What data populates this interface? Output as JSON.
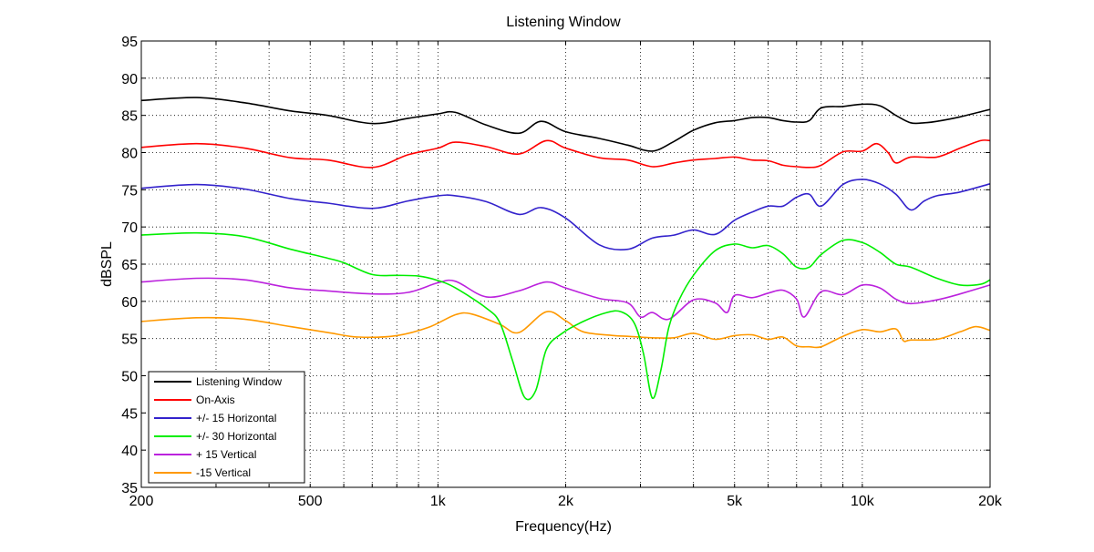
{
  "chart_data": {
    "type": "line",
    "title": "Listening Window",
    "xlabel": "Frequency(Hz)",
    "ylabel": "dBSPL",
    "xscale": "log",
    "xlim": [
      200,
      20000
    ],
    "ylim": [
      35,
      95
    ],
    "grid": true,
    "legend_position": "bottom-left",
    "xticks": [
      {
        "value": 200,
        "label": "200"
      },
      {
        "value": 500,
        "label": "500"
      },
      {
        "value": 1000,
        "label": "1k"
      },
      {
        "value": 2000,
        "label": "2k"
      },
      {
        "value": 5000,
        "label": "5k"
      },
      {
        "value": 10000,
        "label": "10k"
      },
      {
        "value": 20000,
        "label": "20k"
      }
    ],
    "yticks": [
      35,
      40,
      45,
      50,
      55,
      60,
      65,
      70,
      75,
      80,
      85,
      90,
      95
    ],
    "series": [
      {
        "name": "Listening Window",
        "color": "#000000",
        "points": [
          [
            200,
            87
          ],
          [
            270,
            87.4
          ],
          [
            350,
            86.7
          ],
          [
            450,
            85.6
          ],
          [
            550,
            85
          ],
          [
            700,
            83.9
          ],
          [
            850,
            84.6
          ],
          [
            1000,
            85.2
          ],
          [
            1100,
            85.4
          ],
          [
            1300,
            83.7
          ],
          [
            1550,
            82.6
          ],
          [
            1750,
            84.2
          ],
          [
            2000,
            82.8
          ],
          [
            2400,
            81.9
          ],
          [
            2800,
            81
          ],
          [
            3200,
            80.2
          ],
          [
            3600,
            81.5
          ],
          [
            4000,
            83
          ],
          [
            4500,
            84
          ],
          [
            5000,
            84.3
          ],
          [
            5500,
            84.7
          ],
          [
            6000,
            84.7
          ],
          [
            6500,
            84.3
          ],
          [
            7000,
            84.1
          ],
          [
            7500,
            84.3
          ],
          [
            8000,
            86
          ],
          [
            9000,
            86.2
          ],
          [
            10000,
            86.5
          ],
          [
            11000,
            86.3
          ],
          [
            12000,
            85
          ],
          [
            13000,
            84
          ],
          [
            14000,
            84
          ],
          [
            15000,
            84.2
          ],
          [
            17000,
            84.8
          ],
          [
            20000,
            85.8
          ]
        ]
      },
      {
        "name": "On-Axis",
        "color": "#ff0000",
        "points": [
          [
            200,
            80.7
          ],
          [
            270,
            81.2
          ],
          [
            350,
            80.6
          ],
          [
            450,
            79.3
          ],
          [
            550,
            79
          ],
          [
            700,
            78
          ],
          [
            850,
            79.7
          ],
          [
            1000,
            80.6
          ],
          [
            1100,
            81.4
          ],
          [
            1300,
            80.8
          ],
          [
            1550,
            79.8
          ],
          [
            1800,
            81.6
          ],
          [
            2000,
            80.6
          ],
          [
            2400,
            79.3
          ],
          [
            2800,
            79
          ],
          [
            3200,
            78.1
          ],
          [
            3600,
            78.6
          ],
          [
            4000,
            79
          ],
          [
            4500,
            79.2
          ],
          [
            5000,
            79.4
          ],
          [
            5500,
            79
          ],
          [
            6000,
            78.9
          ],
          [
            6500,
            78.3
          ],
          [
            7000,
            78.1
          ],
          [
            7500,
            78
          ],
          [
            8000,
            78.3
          ],
          [
            9000,
            80.1
          ],
          [
            10000,
            80.2
          ],
          [
            10800,
            81.2
          ],
          [
            11500,
            80
          ],
          [
            12000,
            78.6
          ],
          [
            13000,
            79.4
          ],
          [
            15000,
            79.4
          ],
          [
            17000,
            80.6
          ],
          [
            19000,
            81.6
          ],
          [
            20000,
            81.6
          ]
        ]
      },
      {
        "name": "+/- 15 Horizontal",
        "color": "#3322cc",
        "points": [
          [
            200,
            75.2
          ],
          [
            270,
            75.7
          ],
          [
            350,
            75.1
          ],
          [
            450,
            73.8
          ],
          [
            550,
            73.2
          ],
          [
            700,
            72.5
          ],
          [
            850,
            73.5
          ],
          [
            1000,
            74.2
          ],
          [
            1100,
            74.2
          ],
          [
            1300,
            73.4
          ],
          [
            1550,
            71.7
          ],
          [
            1750,
            72.6
          ],
          [
            2000,
            71.2
          ],
          [
            2400,
            67.6
          ],
          [
            2800,
            67
          ],
          [
            3200,
            68.5
          ],
          [
            3600,
            68.9
          ],
          [
            4000,
            69.6
          ],
          [
            4500,
            69
          ],
          [
            5000,
            70.9
          ],
          [
            5500,
            72
          ],
          [
            6000,
            72.8
          ],
          [
            6500,
            72.8
          ],
          [
            7000,
            74
          ],
          [
            7500,
            74.4
          ],
          [
            8000,
            72.8
          ],
          [
            9000,
            75.7
          ],
          [
            10000,
            76.4
          ],
          [
            11000,
            75.8
          ],
          [
            12000,
            74.4
          ],
          [
            13000,
            72.3
          ],
          [
            14000,
            73.5
          ],
          [
            15000,
            74.2
          ],
          [
            17000,
            74.7
          ],
          [
            20000,
            75.8
          ]
        ]
      },
      {
        "name": "+/- 30 Horizontal",
        "color": "#00ee00",
        "points": [
          [
            200,
            68.9
          ],
          [
            270,
            69.2
          ],
          [
            350,
            68.7
          ],
          [
            450,
            67
          ],
          [
            550,
            65.8
          ],
          [
            600,
            65.2
          ],
          [
            700,
            63.6
          ],
          [
            800,
            63.5
          ],
          [
            900,
            63.4
          ],
          [
            1000,
            62.8
          ],
          [
            1100,
            61.8
          ],
          [
            1300,
            59.1
          ],
          [
            1400,
            57.1
          ],
          [
            1500,
            52
          ],
          [
            1600,
            47.1
          ],
          [
            1700,
            48
          ],
          [
            1800,
            53.5
          ],
          [
            1950,
            55.6
          ],
          [
            2200,
            57.3
          ],
          [
            2500,
            58.5
          ],
          [
            2700,
            58.6
          ],
          [
            2900,
            57.1
          ],
          [
            3050,
            53
          ],
          [
            3200,
            47
          ],
          [
            3350,
            50.7
          ],
          [
            3500,
            56.5
          ],
          [
            3700,
            60.2
          ],
          [
            4000,
            63.5
          ],
          [
            4500,
            66.8
          ],
          [
            5000,
            67.7
          ],
          [
            5500,
            67.2
          ],
          [
            6000,
            67.5
          ],
          [
            6500,
            66.4
          ],
          [
            7000,
            64.6
          ],
          [
            7500,
            64.6
          ],
          [
            8000,
            66.3
          ],
          [
            9000,
            68.2
          ],
          [
            10000,
            67.9
          ],
          [
            11000,
            66.6
          ],
          [
            12000,
            65
          ],
          [
            13000,
            64.6
          ],
          [
            15000,
            63.1
          ],
          [
            17000,
            62.2
          ],
          [
            19000,
            62.3
          ],
          [
            20000,
            62.9
          ]
        ]
      },
      {
        "name": "+ 15 Vertical",
        "color": "#bb22dd",
        "points": [
          [
            200,
            62.6
          ],
          [
            270,
            63.1
          ],
          [
            350,
            62.9
          ],
          [
            450,
            61.8
          ],
          [
            550,
            61.4
          ],
          [
            700,
            61
          ],
          [
            850,
            61.2
          ],
          [
            1000,
            62.5
          ],
          [
            1100,
            62.7
          ],
          [
            1300,
            60.6
          ],
          [
            1550,
            61.4
          ],
          [
            1800,
            62.6
          ],
          [
            2000,
            61.8
          ],
          [
            2400,
            60.4
          ],
          [
            2800,
            59.8
          ],
          [
            3000,
            57.9
          ],
          [
            3200,
            58.5
          ],
          [
            3500,
            57.6
          ],
          [
            4000,
            60.2
          ],
          [
            4500,
            59.8
          ],
          [
            4800,
            58.5
          ],
          [
            5000,
            60.8
          ],
          [
            5500,
            60.5
          ],
          [
            6000,
            61.1
          ],
          [
            6500,
            61.5
          ],
          [
            7000,
            60.3
          ],
          [
            7300,
            57.9
          ],
          [
            8000,
            61.3
          ],
          [
            9000,
            60.9
          ],
          [
            10000,
            62.2
          ],
          [
            11000,
            61.8
          ],
          [
            12000,
            60.3
          ],
          [
            13000,
            59.7
          ],
          [
            15000,
            60.2
          ],
          [
            17000,
            61
          ],
          [
            20000,
            62.2
          ]
        ]
      },
      {
        "name": "-15 Vertical",
        "color": "#ff9900",
        "points": [
          [
            200,
            57.3
          ],
          [
            270,
            57.8
          ],
          [
            350,
            57.6
          ],
          [
            450,
            56.6
          ],
          [
            550,
            55.8
          ],
          [
            650,
            55.2
          ],
          [
            800,
            55.4
          ],
          [
            950,
            56.5
          ],
          [
            1100,
            58.2
          ],
          [
            1200,
            58.3
          ],
          [
            1400,
            56.9
          ],
          [
            1550,
            55.8
          ],
          [
            1800,
            58.6
          ],
          [
            2000,
            57.4
          ],
          [
            2200,
            55.9
          ],
          [
            2600,
            55.4
          ],
          [
            2800,
            55.3
          ],
          [
            3200,
            55.1
          ],
          [
            3600,
            55.1
          ],
          [
            4000,
            55.7
          ],
          [
            4500,
            54.9
          ],
          [
            5000,
            55.4
          ],
          [
            5500,
            55.5
          ],
          [
            6000,
            54.9
          ],
          [
            6500,
            55.2
          ],
          [
            7000,
            54
          ],
          [
            7500,
            53.9
          ],
          [
            8000,
            53.9
          ],
          [
            9000,
            55.3
          ],
          [
            10000,
            56.2
          ],
          [
            11000,
            55.9
          ],
          [
            12000,
            56.3
          ],
          [
            12500,
            54.7
          ],
          [
            13000,
            54.8
          ],
          [
            15000,
            54.9
          ],
          [
            17000,
            55.9
          ],
          [
            18500,
            56.6
          ],
          [
            20000,
            56.1
          ]
        ]
      }
    ]
  }
}
